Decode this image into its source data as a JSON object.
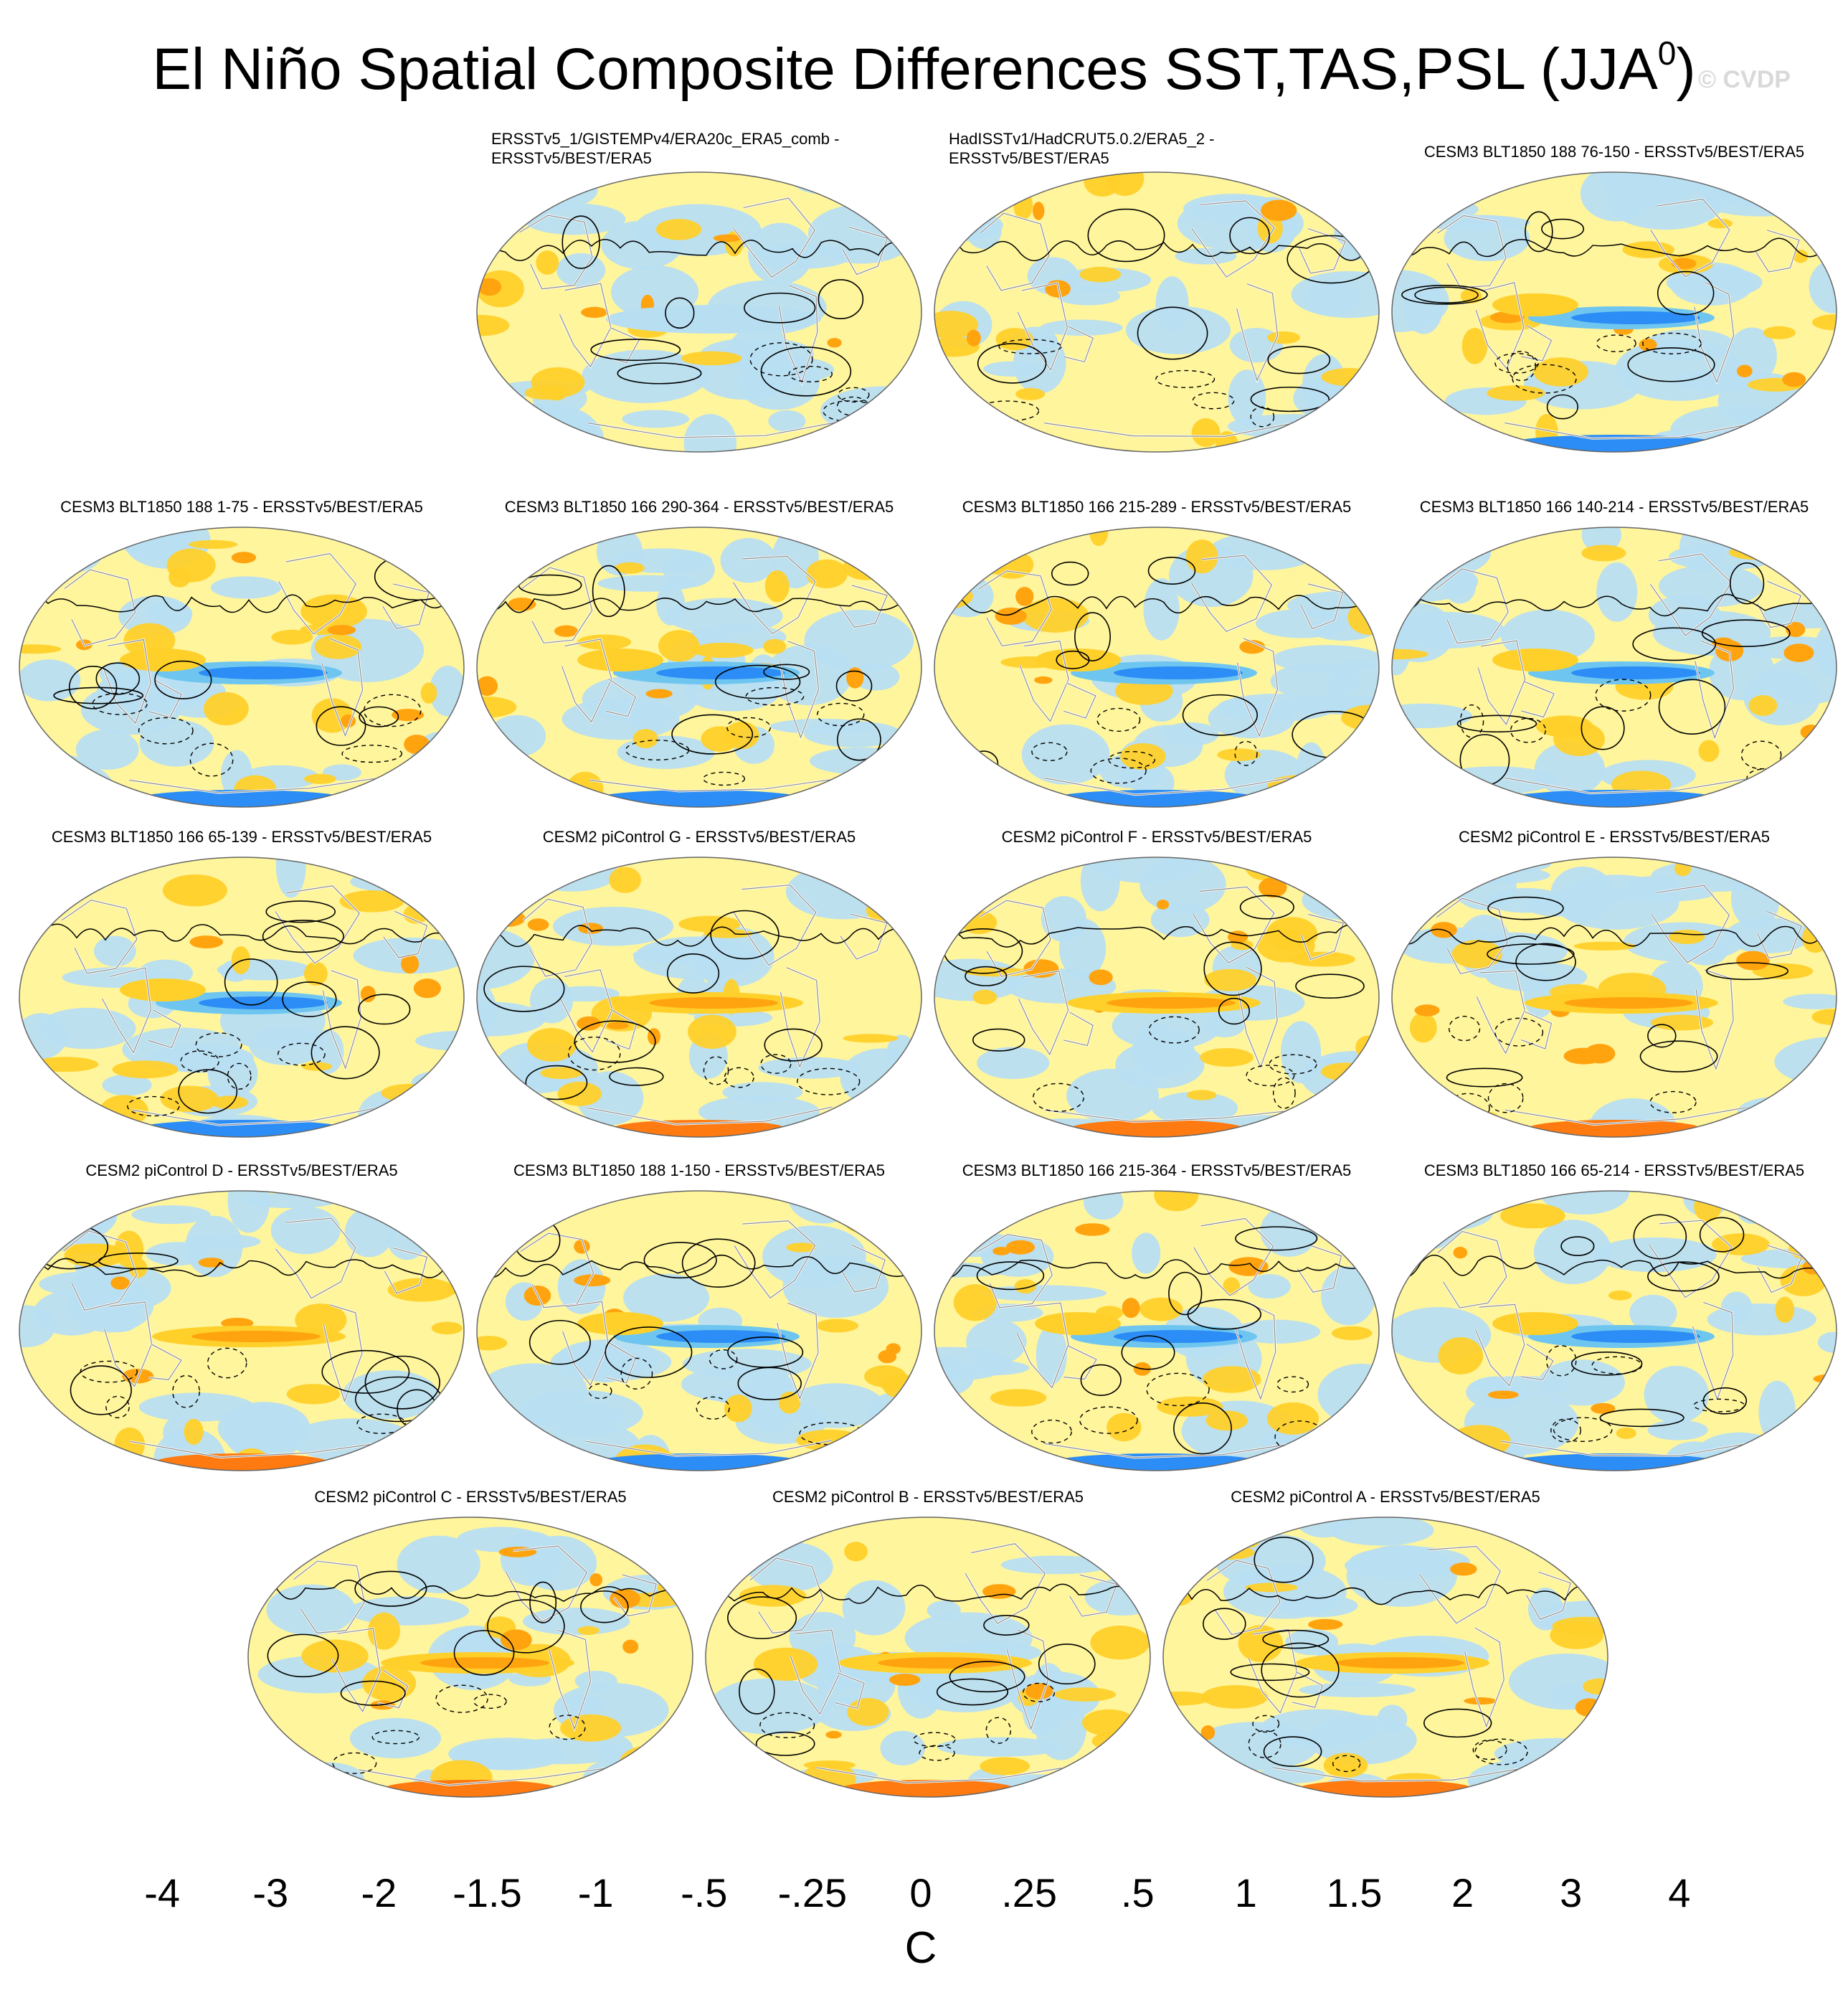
{
  "title": {
    "main": "El Niño Spatial Composite Differences SST,TAS,PSL (JJA",
    "superscript": "0",
    "close": ")"
  },
  "watermark": "© CVDP",
  "panels": [
    {
      "title": [
        "ERSSTv5_1/GISTEMPv4/ERA20c_ERA5_comb -",
        "ERSSTv5/BEST/ERA5"
      ],
      "seed": 3,
      "style": "obs1"
    },
    {
      "title": [
        "HadISSTv1/HadCRUT5.0.2/ERA5_2 -",
        "ERSSTv5/BEST/ERA5"
      ],
      "seed": 7,
      "style": "obs2"
    },
    {
      "title": [
        "CESM3 BLT1850 188 76-150 - ERSSTv5/BEST/ERA5"
      ],
      "seed": 11,
      "style": "cool"
    },
    {
      "title": [
        "CESM3 BLT1850 188 1-75 - ERSSTv5/BEST/ERA5"
      ],
      "seed": 13,
      "style": "cool"
    },
    {
      "title": [
        "CESM3 BLT1850 166 290-364 - ERSSTv5/BEST/ERA5"
      ],
      "seed": 17,
      "style": "cool"
    },
    {
      "title": [
        "CESM3 BLT1850 166 215-289 - ERSSTv5/BEST/ERA5"
      ],
      "seed": 19,
      "style": "cool"
    },
    {
      "title": [
        "CESM3 BLT1850 166 140-214 - ERSSTv5/BEST/ERA5"
      ],
      "seed": 23,
      "style": "cool"
    },
    {
      "title": [
        "CESM3 BLT1850 166 65-139 - ERSSTv5/BEST/ERA5"
      ],
      "seed": 29,
      "style": "cool"
    },
    {
      "title": [
        "CESM2 piControl G - ERSSTv5/BEST/ERA5"
      ],
      "seed": 31,
      "style": "warm"
    },
    {
      "title": [
        "CESM2 piControl F - ERSSTv5/BEST/ERA5"
      ],
      "seed": 37,
      "style": "warm"
    },
    {
      "title": [
        "CESM2 piControl E - ERSSTv5/BEST/ERA5"
      ],
      "seed": 41,
      "style": "warm"
    },
    {
      "title": [
        "CESM2 piControl D - ERSSTv5/BEST/ERA5"
      ],
      "seed": 43,
      "style": "warm"
    },
    {
      "title": [
        "CESM3 BLT1850 188 1-150 - ERSSTv5/BEST/ERA5"
      ],
      "seed": 47,
      "style": "cool"
    },
    {
      "title": [
        "CESM3 BLT1850 166 215-364 - ERSSTv5/BEST/ERA5"
      ],
      "seed": 53,
      "style": "cool"
    },
    {
      "title": [
        "CESM3 BLT1850 166 65-214 - ERSSTv5/BEST/ERA5"
      ],
      "seed": 59,
      "style": "cool"
    },
    {
      "title": [
        "CESM2 piControl C - ERSSTv5/BEST/ERA5"
      ],
      "seed": 61,
      "style": "warm"
    },
    {
      "title": [
        "CESM2 piControl B - ERSSTv5/BEST/ERA5"
      ],
      "seed": 67,
      "style": "warm"
    },
    {
      "title": [
        "CESM2 piControl A - ERSSTv5/BEST/ERA5"
      ],
      "seed": 71,
      "style": "warm"
    }
  ],
  "colorbar": {
    "colors": [
      "#7f1aff",
      "#1414ff",
      "#2a4de0",
      "#2f71e6",
      "#2b8df5",
      "#00bfff",
      "#6ec6f0",
      "#b8def2",
      "#fff59c",
      "#ffd02a",
      "#ffa30f",
      "#ff7a10",
      "#ff3b12",
      "#ea0000",
      "#c61919",
      "#ffb5b5"
    ],
    "labels": [
      "-4",
      "-3",
      "-2",
      "-1.5",
      "-1",
      "-.5",
      "-.25",
      "0",
      ".25",
      ".5",
      "1",
      "1.5",
      "2",
      "3",
      "4"
    ],
    "unit": "C"
  }
}
